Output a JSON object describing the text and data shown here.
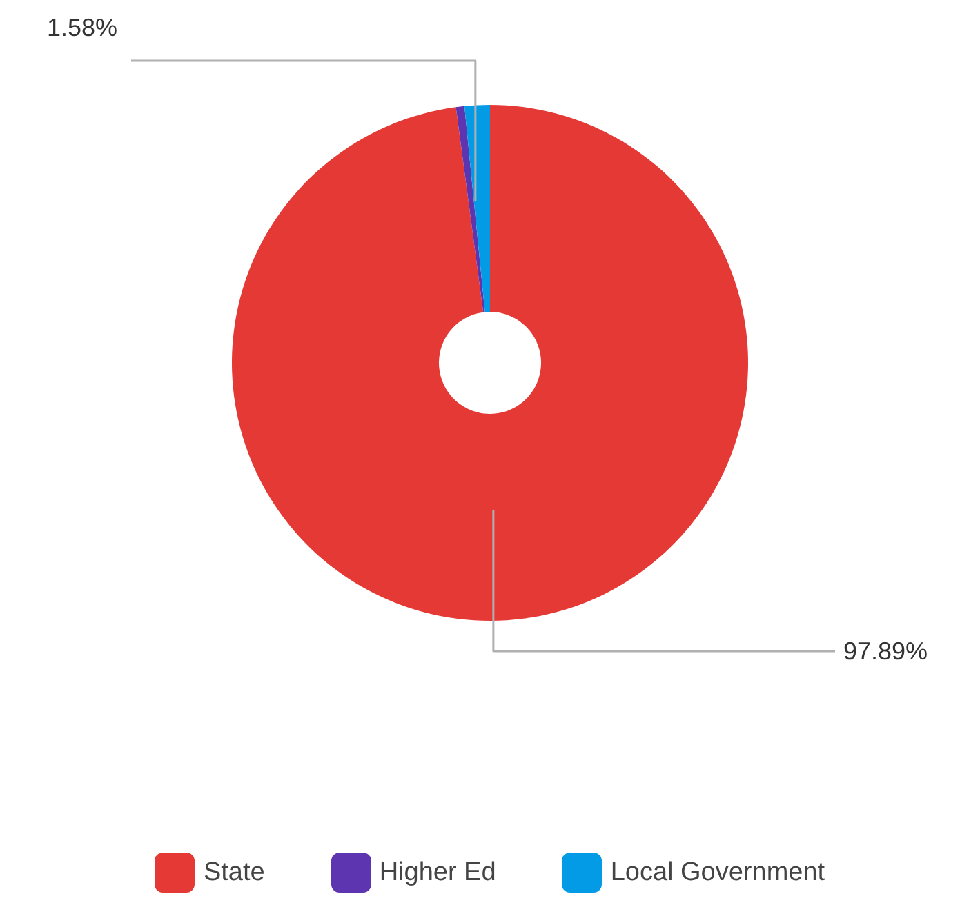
{
  "chart_data": {
    "type": "donut",
    "categories": [
      "State",
      "Higher Ed",
      "Local Government"
    ],
    "values": [
      97.89,
      0.53,
      1.58
    ],
    "colors": [
      "#e53935",
      "#5e35b1",
      "#039be5"
    ],
    "value_labels": [
      "97.89%",
      null,
      "1.58%"
    ],
    "legend": "bottom"
  }
}
